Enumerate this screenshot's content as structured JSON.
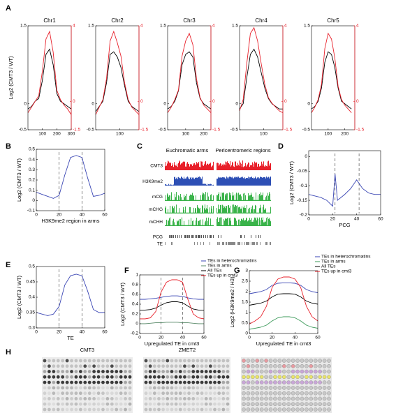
{
  "figure": {
    "panel_labels": [
      "A",
      "B",
      "C",
      "D",
      "E",
      "F",
      "G",
      "H"
    ],
    "track_headers": [
      "Euchromatic arms",
      "Pericentromeric regions"
    ],
    "tracks": [
      "CMT3",
      "H3K9me2",
      "mCG",
      "mCHG",
      "mCHH",
      "PCG",
      "TE"
    ],
    "blot_labels": [
      "CMT3",
      "ZMET2"
    ]
  },
  "chart_data": [
    {
      "type": "line",
      "title": "Chr1",
      "ylabel": "Log2 (CMT3 / WT)",
      "x": [
        0,
        25,
        50,
        75,
        100,
        125,
        150,
        175,
        200,
        225,
        250,
        275,
        300
      ],
      "series": [
        {
          "color": "#000000",
          "values": [
            -0.1,
            -0.05,
            0.05,
            0.1,
            0.45,
            0.95,
            1.05,
            0.75,
            0.2,
            0.05,
            0,
            -0.05,
            -0.1
          ]
        },
        {
          "color": "#e8202a",
          "axis": "y2",
          "values": [
            -0.6,
            -0.3,
            0,
            0.3,
            1.6,
            3.3,
            3.7,
            2.6,
            0.6,
            0.1,
            -0.2,
            -0.4,
            -0.7
          ]
        }
      ],
      "xlim": [
        0,
        300
      ],
      "xticks": [
        100,
        200,
        300
      ],
      "ylim": [
        -0.5,
        1.5
      ],
      "yticks": [
        -0.5,
        0,
        1.5
      ],
      "y2lim": [
        -1.5,
        4
      ],
      "y2ticks": [
        -1.5,
        0,
        4
      ]
    },
    {
      "type": "line",
      "title": "Chr2",
      "x": [
        0,
        15,
        30,
        45,
        60,
        75,
        90,
        105,
        120,
        135,
        150,
        165,
        180
      ],
      "series": [
        {
          "color": "#000000",
          "values": [
            -0.15,
            -0.05,
            0.05,
            0.4,
            0.95,
            1.0,
            0.9,
            0.7,
            0.35,
            0.05,
            -0.05,
            -0.1,
            -0.15
          ]
        },
        {
          "color": "#e8202a",
          "axis": "y2",
          "values": [
            -0.7,
            -0.3,
            0.1,
            1.2,
            3.2,
            3.7,
            3.1,
            2.4,
            1.0,
            0.1,
            -0.3,
            -0.5,
            -0.7
          ]
        }
      ],
      "xlim": [
        0,
        180
      ],
      "xticks": [
        100
      ],
      "ylim": [
        -0.5,
        1.5
      ],
      "yticks": [
        -0.5,
        0,
        1.5
      ],
      "y2lim": [
        -1.5,
        4
      ],
      "y2ticks": [
        -1.5,
        0,
        4
      ]
    },
    {
      "type": "line",
      "title": "Chr3",
      "x": [
        0,
        20,
        40,
        60,
        80,
        100,
        120,
        140,
        160,
        180,
        200,
        220,
        240
      ],
      "series": [
        {
          "color": "#000000",
          "values": [
            -0.1,
            -0.05,
            0.05,
            0.25,
            0.75,
            0.95,
            1.0,
            0.9,
            0.4,
            0.1,
            0,
            -0.05,
            -0.1
          ]
        },
        {
          "color": "#e8202a",
          "axis": "y2",
          "values": [
            -0.6,
            -0.3,
            0.1,
            0.6,
            2.4,
            3.2,
            3.6,
            3.0,
            1.2,
            0.2,
            -0.2,
            -0.4,
            -0.6
          ]
        }
      ],
      "xlim": [
        0,
        240
      ],
      "xticks": [
        100,
        200
      ],
      "ylim": [
        -0.5,
        1.5
      ],
      "yticks": [
        -0.5,
        0,
        1.5
      ],
      "y2lim": [
        -1.5,
        4
      ],
      "y2ticks": [
        -1.5,
        0,
        4
      ]
    },
    {
      "type": "line",
      "title": "Chr4",
      "x": [
        0,
        15,
        30,
        45,
        60,
        75,
        90,
        105,
        120,
        135,
        150,
        165,
        180
      ],
      "series": [
        {
          "color": "#000000",
          "values": [
            -0.1,
            0,
            0.5,
            0.95,
            1.05,
            0.9,
            0.6,
            0.3,
            0.1,
            0,
            -0.05,
            -0.1,
            -0.1
          ]
        },
        {
          "color": "#e8202a",
          "axis": "y2",
          "values": [
            -0.5,
            0.1,
            2.0,
            3.6,
            3.9,
            3.2,
            2.0,
            0.9,
            0.2,
            -0.1,
            -0.3,
            -0.5,
            -0.6
          ]
        }
      ],
      "xlim": [
        0,
        180
      ],
      "xticks": [
        100
      ],
      "ylim": [
        -0.5,
        1.5
      ],
      "yticks": [
        -0.5,
        0,
        1.5
      ],
      "y2lim": [
        -1.5,
        4
      ],
      "y2ticks": [
        -1.5,
        0,
        4
      ]
    },
    {
      "type": "line",
      "title": "Chr5",
      "x": [
        0,
        20,
        40,
        60,
        80,
        100,
        120,
        140,
        160,
        180,
        200,
        220,
        240
      ],
      "series": [
        {
          "color": "#000000",
          "values": [
            -0.1,
            -0.05,
            0.05,
            0.3,
            0.8,
            1.0,
            0.95,
            0.7,
            0.3,
            0.05,
            0,
            -0.05,
            -0.1
          ]
        },
        {
          "color": "#e8202a",
          "axis": "y2",
          "values": [
            -0.6,
            -0.3,
            0.1,
            0.9,
            2.8,
            3.6,
            3.3,
            2.3,
            0.8,
            0.1,
            -0.2,
            -0.4,
            -0.6
          ]
        }
      ],
      "xlim": [
        0,
        260
      ],
      "xticks": [
        100,
        200
      ],
      "ylim": [
        -0.5,
        1.5
      ],
      "yticks": [
        -0.5,
        0,
        1.5
      ],
      "y2lim": [
        -1.5,
        4
      ],
      "y2ticks": [
        -1.5,
        0,
        4
      ]
    },
    {
      "type": "line",
      "xlabel": "H3K9me2 region in arms",
      "ylabel": "Log2 (CMT3 / WT)",
      "x": [
        0,
        5,
        10,
        15,
        20,
        25,
        30,
        35,
        40,
        45,
        50,
        55,
        60
      ],
      "series": [
        {
          "color": "#3a46b4",
          "values": [
            0.08,
            0.06,
            0.04,
            0.02,
            0.05,
            0.25,
            0.42,
            0.44,
            0.42,
            0.22,
            0.04,
            0.05,
            0.07
          ]
        }
      ],
      "xlim": [
        0,
        60
      ],
      "xticks": [
        0,
        20,
        40,
        60
      ],
      "ylim": [
        -0.1,
        0.5
      ],
      "yticks": [
        -0.1,
        0,
        0.1,
        0.2,
        0.3,
        0.4,
        0.5
      ],
      "vlines": [
        20,
        40
      ]
    },
    {
      "type": "line",
      "xlabel": "PCG",
      "ylabel": "Log2 (CMT3 / WT)",
      "x": [
        0,
        5,
        10,
        15,
        20,
        22,
        24,
        30,
        35,
        40,
        45,
        50,
        55,
        60
      ],
      "series": [
        {
          "color": "#3a46b4",
          "values": [
            -0.13,
            -0.135,
            -0.14,
            -0.15,
            -0.17,
            -0.06,
            -0.15,
            -0.13,
            -0.11,
            -0.08,
            -0.11,
            -0.125,
            -0.13,
            -0.13
          ]
        }
      ],
      "xlim": [
        0,
        60
      ],
      "xticks": [
        0,
        20,
        40,
        60
      ],
      "ylim": [
        -0.2,
        0.02
      ],
      "yticks": [
        -0.2,
        -0.15,
        -0.1,
        -0.05,
        0
      ],
      "vlines": [
        22,
        42
      ]
    },
    {
      "type": "line",
      "xlabel": "TE",
      "ylabel": "Log2 (CMT3 / WT)",
      "x": [
        0,
        5,
        10,
        15,
        20,
        25,
        30,
        35,
        40,
        45,
        50,
        55,
        60
      ],
      "series": [
        {
          "color": "#3a46b4",
          "values": [
            0.35,
            0.345,
            0.34,
            0.345,
            0.37,
            0.44,
            0.47,
            0.475,
            0.47,
            0.42,
            0.36,
            0.35,
            0.35
          ]
        }
      ],
      "xlim": [
        0,
        60
      ],
      "xticks": [
        0,
        20,
        40,
        60
      ],
      "ylim": [
        0.3,
        0.5
      ],
      "yticks": [
        0.3,
        0.35,
        0.4,
        0.45,
        0.5
      ],
      "vlines": [
        20,
        40
      ]
    },
    {
      "type": "line",
      "xlabel": "Upregulated TE in cmt3",
      "ylabel": "Log2 (CMT3 / WT)",
      "legend": "upper right",
      "x": [
        0,
        5,
        10,
        15,
        20,
        25,
        30,
        35,
        40,
        45,
        50,
        55,
        60
      ],
      "series": [
        {
          "name": "TEs in heterochromatins",
          "color": "#3a46b4",
          "values": [
            0.5,
            0.5,
            0.51,
            0.52,
            0.54,
            0.56,
            0.57,
            0.57,
            0.56,
            0.53,
            0.51,
            0.5,
            0.5
          ]
        },
        {
          "name": "TEs in arms",
          "color": "#5a8a6a",
          "values": [
            0,
            0,
            0.01,
            0.02,
            0.02,
            0.03,
            0.03,
            0.03,
            0.02,
            0.02,
            0.01,
            0,
            0
          ]
        },
        {
          "name": "All TEs",
          "color": "#000000",
          "values": [
            0.28,
            0.28,
            0.29,
            0.32,
            0.38,
            0.43,
            0.45,
            0.45,
            0.43,
            0.36,
            0.3,
            0.28,
            0.28
          ]
        },
        {
          "name": "TEs up in cmt3",
          "color": "#e8202a",
          "values": [
            0.1,
            0.1,
            0.12,
            0.25,
            0.65,
            0.85,
            0.9,
            0.9,
            0.85,
            0.5,
            0.2,
            0.12,
            0.1
          ]
        }
      ],
      "xlim": [
        0,
        60
      ],
      "xticks": [
        0,
        20,
        40,
        60
      ],
      "ylim": [
        -0.2,
        1
      ],
      "yticks": [
        -0.2,
        0,
        0.2,
        0.4,
        0.6,
        0.8,
        1
      ],
      "vlines": [
        20,
        40
      ]
    },
    {
      "type": "line",
      "xlabel": "Upregulated TE in cmt3",
      "ylabel": "Log2 (H3K9me2 / H3)",
      "legend": "upper right",
      "x": [
        0,
        5,
        10,
        15,
        20,
        25,
        30,
        35,
        40,
        45,
        50,
        55,
        60
      ],
      "series": [
        {
          "name": "TEs in heterochromatins",
          "color": "#3a46b4",
          "values": [
            1.9,
            1.95,
            2.0,
            2.1,
            2.3,
            2.4,
            2.42,
            2.42,
            2.4,
            2.3,
            2.1,
            2.0,
            1.95
          ]
        },
        {
          "name": "TEs in arms",
          "color": "#3c9a5a",
          "values": [
            0.2,
            0.25,
            0.3,
            0.4,
            0.6,
            0.75,
            0.8,
            0.8,
            0.75,
            0.6,
            0.4,
            0.3,
            0.25
          ]
        },
        {
          "name": "All TEs",
          "color": "#000000",
          "values": [
            1.35,
            1.4,
            1.45,
            1.55,
            1.75,
            1.88,
            1.9,
            1.9,
            1.88,
            1.75,
            1.55,
            1.45,
            1.4
          ]
        },
        {
          "name": "TEs up in cmt3",
          "color": "#e8202a",
          "values": [
            0.45,
            0.6,
            0.8,
            1.3,
            2.2,
            2.6,
            2.7,
            2.7,
            2.6,
            2.2,
            1.3,
            0.8,
            0.6
          ]
        }
      ],
      "xlim": [
        0,
        60
      ],
      "xticks": [
        0,
        20,
        40,
        60
      ],
      "ylim": [
        0,
        3
      ],
      "yticks": [
        0,
        0.5,
        1,
        1.5,
        2,
        2.5,
        3
      ]
    }
  ]
}
